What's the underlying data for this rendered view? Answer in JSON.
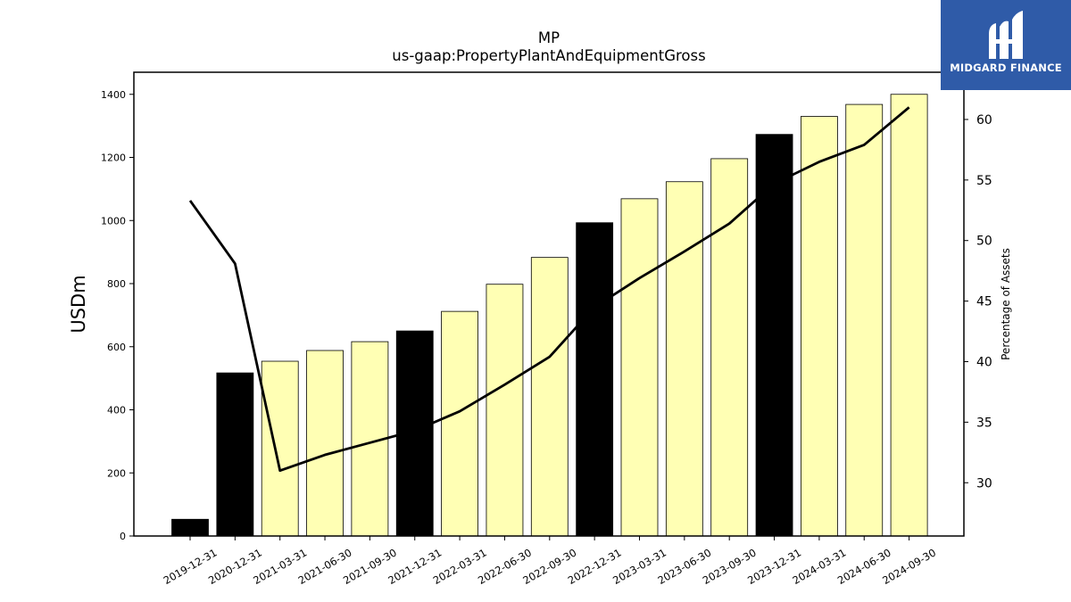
{
  "logo": {
    "text": "MIDGARD FINANCE",
    "color": "#2f5ba8"
  },
  "chart_data": {
    "type": "bar",
    "title": "MP",
    "subtitle": "us-gaap:PropertyPlantAndEquipmentGross",
    "ylabel": "USDm",
    "y2label": "Percentage of Assets",
    "ylim": [
      0,
      1470
    ],
    "y2lim": [
      25.6,
      63.9
    ],
    "yticks": [
      0,
      200,
      400,
      600,
      800,
      1000,
      1200,
      1400
    ],
    "y2ticks": [
      30,
      35,
      40,
      45,
      50,
      55,
      60
    ],
    "categories": [
      "2019-12-31",
      "2020-12-31",
      "2021-03-31",
      "2021-06-30",
      "2021-09-30",
      "2021-12-31",
      "2022-03-31",
      "2022-06-30",
      "2022-09-30",
      "2022-12-31",
      "2023-03-31",
      "2023-06-30",
      "2023-09-30",
      "2023-12-31",
      "2024-03-31",
      "2024-06-30",
      "2024-09-30"
    ],
    "series": [
      {
        "kind": "bar",
        "values": [
          53,
          517,
          554,
          588,
          616,
          650,
          712,
          798,
          883,
          993,
          1069,
          1123,
          1196,
          1273,
          1330,
          1368,
          1400
        ],
        "annual_flags": [
          true,
          true,
          false,
          false,
          false,
          true,
          false,
          false,
          false,
          true,
          false,
          false,
          false,
          true,
          false,
          false,
          false
        ],
        "colors": {
          "annual": "#000000",
          "quarterly": "#ffffb4"
        }
      },
      {
        "kind": "line",
        "axis": "right",
        "color": "#000000",
        "values": [
          53.3,
          48.1,
          31.0,
          32.3,
          33.3,
          34.3,
          35.9,
          38.1,
          40.4,
          44.5,
          46.9,
          49.1,
          51.4,
          54.7,
          56.5,
          57.9,
          61.0
        ]
      }
    ],
    "grid": false,
    "legend": "none"
  }
}
